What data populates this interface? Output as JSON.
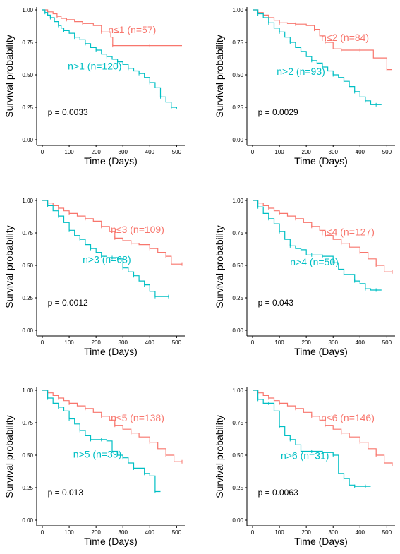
{
  "colors": {
    "high": "#F8766D",
    "low": "#00BFC4"
  },
  "chart_data": [
    {
      "type": "line",
      "xlabel": "Time (Days)",
      "ylabel": "Survival probability",
      "xlim": [
        0,
        520
      ],
      "ylim": [
        0,
        1
      ],
      "x_ticks": [
        0,
        100,
        200,
        300,
        400,
        500
      ],
      "y_ticks": [
        "0.00",
        "0.25",
        "0.50",
        "0.75",
        "1.00"
      ],
      "p_value": "p = 0.0033",
      "series": [
        {
          "name": "n≤1 (n=57)",
          "color": "#F8766D",
          "x": [
            0,
            20,
            40,
            55,
            70,
            90,
            120,
            150,
            190,
            220,
            255,
            262,
            300,
            400,
            520
          ],
          "y": [
            1.0,
            0.985,
            0.97,
            0.95,
            0.935,
            0.925,
            0.91,
            0.895,
            0.88,
            0.83,
            0.79,
            0.725,
            0.725,
            0.725,
            0.725
          ]
        },
        {
          "name": "n>1 (n=120)",
          "color": "#00BFC4",
          "x": [
            0,
            10,
            20,
            30,
            45,
            60,
            70,
            80,
            100,
            120,
            140,
            160,
            180,
            200,
            220,
            240,
            260,
            280,
            300,
            320,
            340,
            360,
            380,
            400,
            420,
            440,
            460,
            480,
            500
          ],
          "y": [
            1.0,
            0.98,
            0.96,
            0.94,
            0.91,
            0.88,
            0.86,
            0.84,
            0.82,
            0.79,
            0.77,
            0.74,
            0.71,
            0.69,
            0.66,
            0.64,
            0.62,
            0.6,
            0.58,
            0.55,
            0.53,
            0.51,
            0.48,
            0.44,
            0.4,
            0.33,
            0.29,
            0.25,
            0.24
          ]
        }
      ]
    },
    {
      "type": "line",
      "xlabel": "Time (Days)",
      "ylabel": "Survival probability",
      "xlim": [
        0,
        520
      ],
      "ylim": [
        0,
        1
      ],
      "x_ticks": [
        0,
        100,
        200,
        300,
        400,
        500
      ],
      "y_ticks": [
        "0.00",
        "0.25",
        "0.50",
        "0.75",
        "1.00"
      ],
      "p_value": "p = 0.0029",
      "series": [
        {
          "name": "n≤2 (n=84)",
          "color": "#F8766D",
          "x": [
            0,
            20,
            40,
            60,
            80,
            100,
            130,
            160,
            200,
            230,
            250,
            270,
            300,
            330,
            350,
            400,
            450,
            500,
            520
          ],
          "y": [
            1.0,
            0.98,
            0.96,
            0.94,
            0.92,
            0.9,
            0.895,
            0.89,
            0.88,
            0.85,
            0.8,
            0.75,
            0.7,
            0.69,
            0.69,
            0.69,
            0.63,
            0.54,
            0.54
          ]
        },
        {
          "name": "n>2 (n=93)",
          "color": "#00BFC4",
          "x": [
            0,
            20,
            40,
            60,
            80,
            100,
            120,
            140,
            160,
            180,
            200,
            220,
            240,
            260,
            280,
            300,
            320,
            340,
            360,
            380,
            400,
            420,
            440,
            460,
            480
          ],
          "y": [
            1.0,
            0.97,
            0.94,
            0.9,
            0.86,
            0.83,
            0.79,
            0.75,
            0.71,
            0.68,
            0.64,
            0.61,
            0.59,
            0.56,
            0.53,
            0.5,
            0.48,
            0.45,
            0.41,
            0.37,
            0.33,
            0.3,
            0.27,
            0.27,
            0.27
          ]
        }
      ]
    },
    {
      "type": "line",
      "xlabel": "Time (Days)",
      "ylabel": "Survival probability",
      "xlim": [
        0,
        520
      ],
      "ylim": [
        0,
        1
      ],
      "x_ticks": [
        0,
        100,
        200,
        300,
        400,
        500
      ],
      "y_ticks": [
        "0.00",
        "0.25",
        "0.50",
        "0.75",
        "1.00"
      ],
      "p_value": "p = 0.0012",
      "series": [
        {
          "name": "n≤3 (n=109)",
          "color": "#F8766D",
          "x": [
            0,
            20,
            40,
            60,
            80,
            100,
            130,
            160,
            190,
            220,
            250,
            270,
            300,
            330,
            360,
            400,
            430,
            460,
            480,
            520
          ],
          "y": [
            1.0,
            0.98,
            0.96,
            0.94,
            0.92,
            0.9,
            0.88,
            0.86,
            0.84,
            0.8,
            0.76,
            0.71,
            0.69,
            0.67,
            0.66,
            0.63,
            0.6,
            0.57,
            0.51,
            0.51
          ]
        },
        {
          "name": "n>3 (n=68)",
          "color": "#00BFC4",
          "x": [
            0,
            20,
            40,
            60,
            80,
            100,
            120,
            140,
            160,
            180,
            200,
            220,
            240,
            260,
            280,
            300,
            320,
            340,
            360,
            380,
            400,
            420,
            440,
            470
          ],
          "y": [
            1.0,
            0.96,
            0.92,
            0.88,
            0.83,
            0.77,
            0.73,
            0.7,
            0.66,
            0.63,
            0.6,
            0.57,
            0.56,
            0.56,
            0.55,
            0.48,
            0.45,
            0.42,
            0.38,
            0.35,
            0.3,
            0.26,
            0.26,
            0.26
          ]
        }
      ]
    },
    {
      "type": "line",
      "xlabel": "Time (Days)",
      "ylabel": "Survival probability",
      "xlim": [
        0,
        520
      ],
      "ylim": [
        0,
        1
      ],
      "x_ticks": [
        0,
        100,
        200,
        300,
        400,
        500
      ],
      "y_ticks": [
        "0.00",
        "0.25",
        "0.50",
        "0.75",
        "1.00"
      ],
      "p_value": "p = 0.043",
      "series": [
        {
          "name": "n≤4 (n=127)",
          "color": "#F8766D",
          "x": [
            0,
            20,
            40,
            60,
            80,
            100,
            130,
            160,
            190,
            220,
            250,
            270,
            300,
            330,
            360,
            400,
            430,
            460,
            490,
            520
          ],
          "y": [
            1.0,
            0.98,
            0.96,
            0.94,
            0.92,
            0.9,
            0.88,
            0.86,
            0.83,
            0.8,
            0.77,
            0.73,
            0.7,
            0.67,
            0.64,
            0.6,
            0.55,
            0.5,
            0.45,
            0.45
          ]
        },
        {
          "name": "n>4 (n=50)",
          "color": "#00BFC4",
          "x": [
            0,
            20,
            40,
            60,
            80,
            100,
            120,
            140,
            160,
            180,
            200,
            220,
            240,
            260,
            280,
            300,
            320,
            340,
            360,
            380,
            400,
            420,
            440,
            460,
            480
          ],
          "y": [
            1.0,
            0.95,
            0.9,
            0.86,
            0.82,
            0.76,
            0.7,
            0.65,
            0.63,
            0.62,
            0.58,
            0.58,
            0.58,
            0.57,
            0.57,
            0.52,
            0.47,
            0.43,
            0.43,
            0.38,
            0.36,
            0.32,
            0.31,
            0.31,
            0.31
          ]
        }
      ]
    },
    {
      "type": "line",
      "xlabel": "Time (Days)",
      "ylabel": "Survival probability",
      "xlim": [
        0,
        520
      ],
      "ylim": [
        0,
        1
      ],
      "x_ticks": [
        0,
        100,
        200,
        300,
        400,
        500
      ],
      "y_ticks": [
        "0.00",
        "0.25",
        "0.50",
        "0.75",
        "1.00"
      ],
      "p_value": "p = 0.013",
      "series": [
        {
          "name": "n≤5 (n=138)",
          "color": "#F8766D",
          "x": [
            0,
            20,
            40,
            60,
            80,
            100,
            130,
            160,
            190,
            220,
            250,
            270,
            300,
            330,
            360,
            400,
            430,
            460,
            490,
            520
          ],
          "y": [
            1.0,
            0.98,
            0.96,
            0.94,
            0.92,
            0.9,
            0.88,
            0.86,
            0.83,
            0.8,
            0.77,
            0.73,
            0.7,
            0.67,
            0.64,
            0.6,
            0.55,
            0.5,
            0.45,
            0.45
          ]
        },
        {
          "name": "n>5 (n=39)",
          "color": "#00BFC4",
          "x": [
            0,
            20,
            40,
            60,
            80,
            100,
            120,
            140,
            160,
            180,
            200,
            220,
            240,
            260,
            280,
            300,
            320,
            340,
            360,
            380,
            400,
            420,
            440
          ],
          "y": [
            1.0,
            0.94,
            0.9,
            0.87,
            0.84,
            0.78,
            0.74,
            0.69,
            0.65,
            0.62,
            0.62,
            0.62,
            0.61,
            0.53,
            0.5,
            0.48,
            0.44,
            0.4,
            0.4,
            0.36,
            0.34,
            0.22,
            0.22
          ]
        }
      ]
    },
    {
      "type": "line",
      "xlabel": "Time (Days)",
      "ylabel": "Survival probability",
      "xlim": [
        0,
        520
      ],
      "ylim": [
        0,
        1
      ],
      "x_ticks": [
        0,
        100,
        200,
        300,
        400,
        500
      ],
      "y_ticks": [
        "0.00",
        "0.25",
        "0.50",
        "0.75",
        "1.00"
      ],
      "p_value": "p = 0.0063",
      "series": [
        {
          "name": "n≤6 (n=146)",
          "color": "#F8766D",
          "x": [
            0,
            20,
            40,
            60,
            80,
            100,
            130,
            160,
            190,
            220,
            250,
            270,
            300,
            330,
            360,
            400,
            430,
            460,
            490,
            520
          ],
          "y": [
            1.0,
            0.98,
            0.96,
            0.94,
            0.92,
            0.9,
            0.88,
            0.86,
            0.83,
            0.8,
            0.77,
            0.73,
            0.7,
            0.67,
            0.64,
            0.6,
            0.55,
            0.5,
            0.44,
            0.43
          ]
        },
        {
          "name": "n>6 (n=31)",
          "color": "#00BFC4",
          "x": [
            0,
            20,
            40,
            60,
            80,
            100,
            120,
            140,
            160,
            180,
            200,
            220,
            240,
            260,
            280,
            300,
            320,
            340,
            360,
            380,
            400,
            420,
            440
          ],
          "y": [
            1.0,
            0.93,
            0.9,
            0.9,
            0.84,
            0.72,
            0.65,
            0.62,
            0.58,
            0.53,
            0.53,
            0.53,
            0.53,
            0.52,
            0.52,
            0.5,
            0.36,
            0.32,
            0.27,
            0.26,
            0.26,
            0.26,
            0.26
          ]
        }
      ]
    }
  ]
}
